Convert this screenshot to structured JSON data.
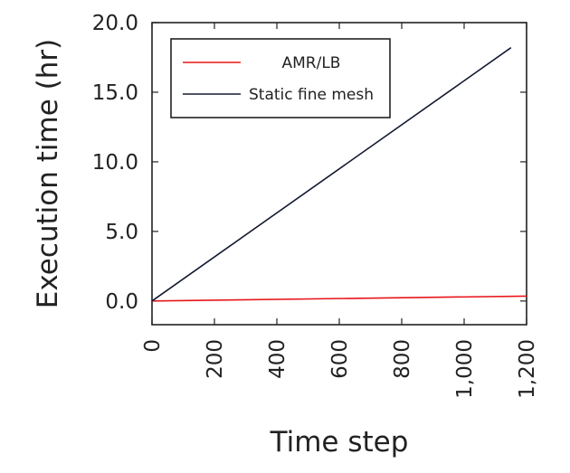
{
  "chart_data": {
    "type": "line",
    "xlabel": "Time step",
    "ylabel": "Execution time (hr)",
    "xlim": [
      0,
      1200
    ],
    "ylim": [
      -1.7,
      20.0
    ],
    "xticks": [
      0,
      200,
      400,
      600,
      800,
      1000,
      1200
    ],
    "xtick_labels": [
      "0",
      "200",
      "400",
      "600",
      "800",
      "1,000",
      "1,200"
    ],
    "yticks": [
      0,
      5,
      10,
      15,
      20
    ],
    "ytick_labels": [
      "0.0",
      "5.0",
      "10.0",
      "15.0",
      "20.0"
    ],
    "grid": false,
    "legend_position": "top-left",
    "series": [
      {
        "name": "AMR/LB",
        "color": "#e8161a",
        "x": [
          0,
          1200
        ],
        "y": [
          0.0,
          0.35
        ]
      },
      {
        "name": "Static fine mesh",
        "color": "#141a33",
        "x": [
          0,
          1150
        ],
        "y": [
          0.0,
          18.2
        ]
      }
    ]
  }
}
